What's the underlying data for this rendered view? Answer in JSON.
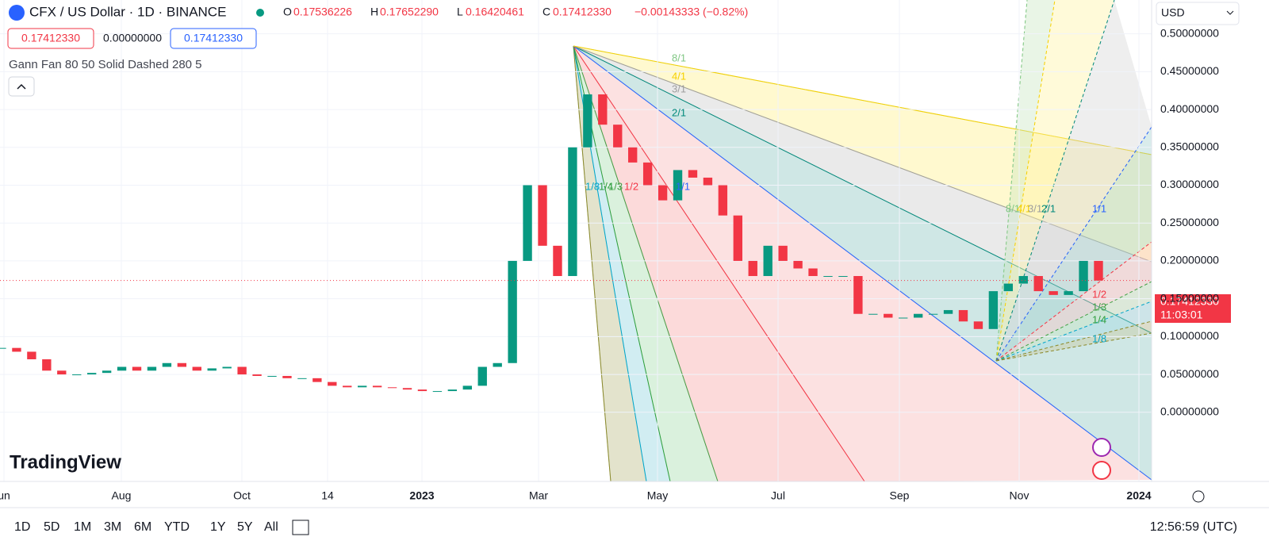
{
  "header": {
    "symbol": "CFX / US Dollar · 1D · BINANCE",
    "o_label": "O",
    "o": "0.17536226",
    "h_label": "H",
    "h": "0.17652290",
    "l_label": "L",
    "l": "0.16420461",
    "c_label": "C",
    "c": "0.17412330",
    "change": "−0.00143333 (−0.82%)",
    "sell": "0.17412330",
    "spread": "0.00000000",
    "buy": "0.17412330",
    "indicator": "Gann Fan 80 50 Solid Dashed 280 5"
  },
  "currency": "USD",
  "logo": "TradingView",
  "price_tag": "0.17412330",
  "countdown": "11:03:01",
  "periods": [
    "1D",
    "5D",
    "1M",
    "3M",
    "6M",
    "YTD",
    "1Y",
    "5Y",
    "All"
  ],
  "clock": "12:56:59 (UTC)",
  "fan_levels": [
    "8/1",
    "4/1",
    "3/1",
    "2/1",
    "1/1",
    "1/2",
    "1/3",
    "1/4",
    "1/8"
  ],
  "x_labels": [
    "un",
    "Aug",
    "Oct",
    "14",
    "2023",
    "Mar",
    "May",
    "Jul",
    "Sep",
    "Nov",
    "2024"
  ],
  "chart_data": {
    "type": "candlestick",
    "up_color": "#089981",
    "down_color": "#f23645",
    "values": [
      0.085,
      0.08,
      0.07,
      0.055,
      0.05,
      0.05,
      0.052,
      0.055,
      0.06,
      0.055,
      0.06,
      0.065,
      0.06,
      0.055,
      0.058,
      0.06,
      0.05,
      0.048,
      0.048,
      0.045,
      0.045,
      0.04,
      0.035,
      0.033,
      0.035,
      0.033,
      0.032,
      0.03,
      0.028,
      0.028,
      0.03,
      0.035,
      0.06,
      0.065,
      0.2,
      0.3,
      0.22,
      0.18,
      0.35,
      0.42,
      0.38,
      0.35,
      0.33,
      0.3,
      0.28,
      0.32,
      0.31,
      0.3,
      0.26,
      0.2,
      0.18,
      0.22,
      0.2,
      0.19,
      0.18,
      0.18,
      0.18,
      0.13,
      0.13,
      0.125,
      0.125,
      0.13,
      0.13,
      0.135,
      0.12,
      0.11,
      0.16,
      0.17,
      0.18,
      0.16,
      0.155,
      0.16,
      0.2,
      0.174
    ],
    "ylim": [
      -0.0914,
      0.5447
    ],
    "yticks": [
      {
        "value": 0,
        "label": "0.00000000"
      },
      {
        "value": 0.05,
        "label": "0.05000000"
      },
      {
        "value": 0.1,
        "label": "0.10000000"
      },
      {
        "value": 0.15,
        "label": "0.15000000"
      },
      {
        "value": 0.2,
        "label": "0.20000000"
      },
      {
        "value": 0.25,
        "label": "0.25000000"
      },
      {
        "value": 0.3,
        "label": "0.30000000"
      },
      {
        "value": 0.35,
        "label": "0.35000000"
      },
      {
        "value": 0.4,
        "label": "0.40000000"
      },
      {
        "value": 0.45,
        "label": "0.45000000"
      },
      {
        "value": 0.5,
        "label": "0.50000000"
      }
    ],
    "last": 0.1741233,
    "grid": true
  }
}
